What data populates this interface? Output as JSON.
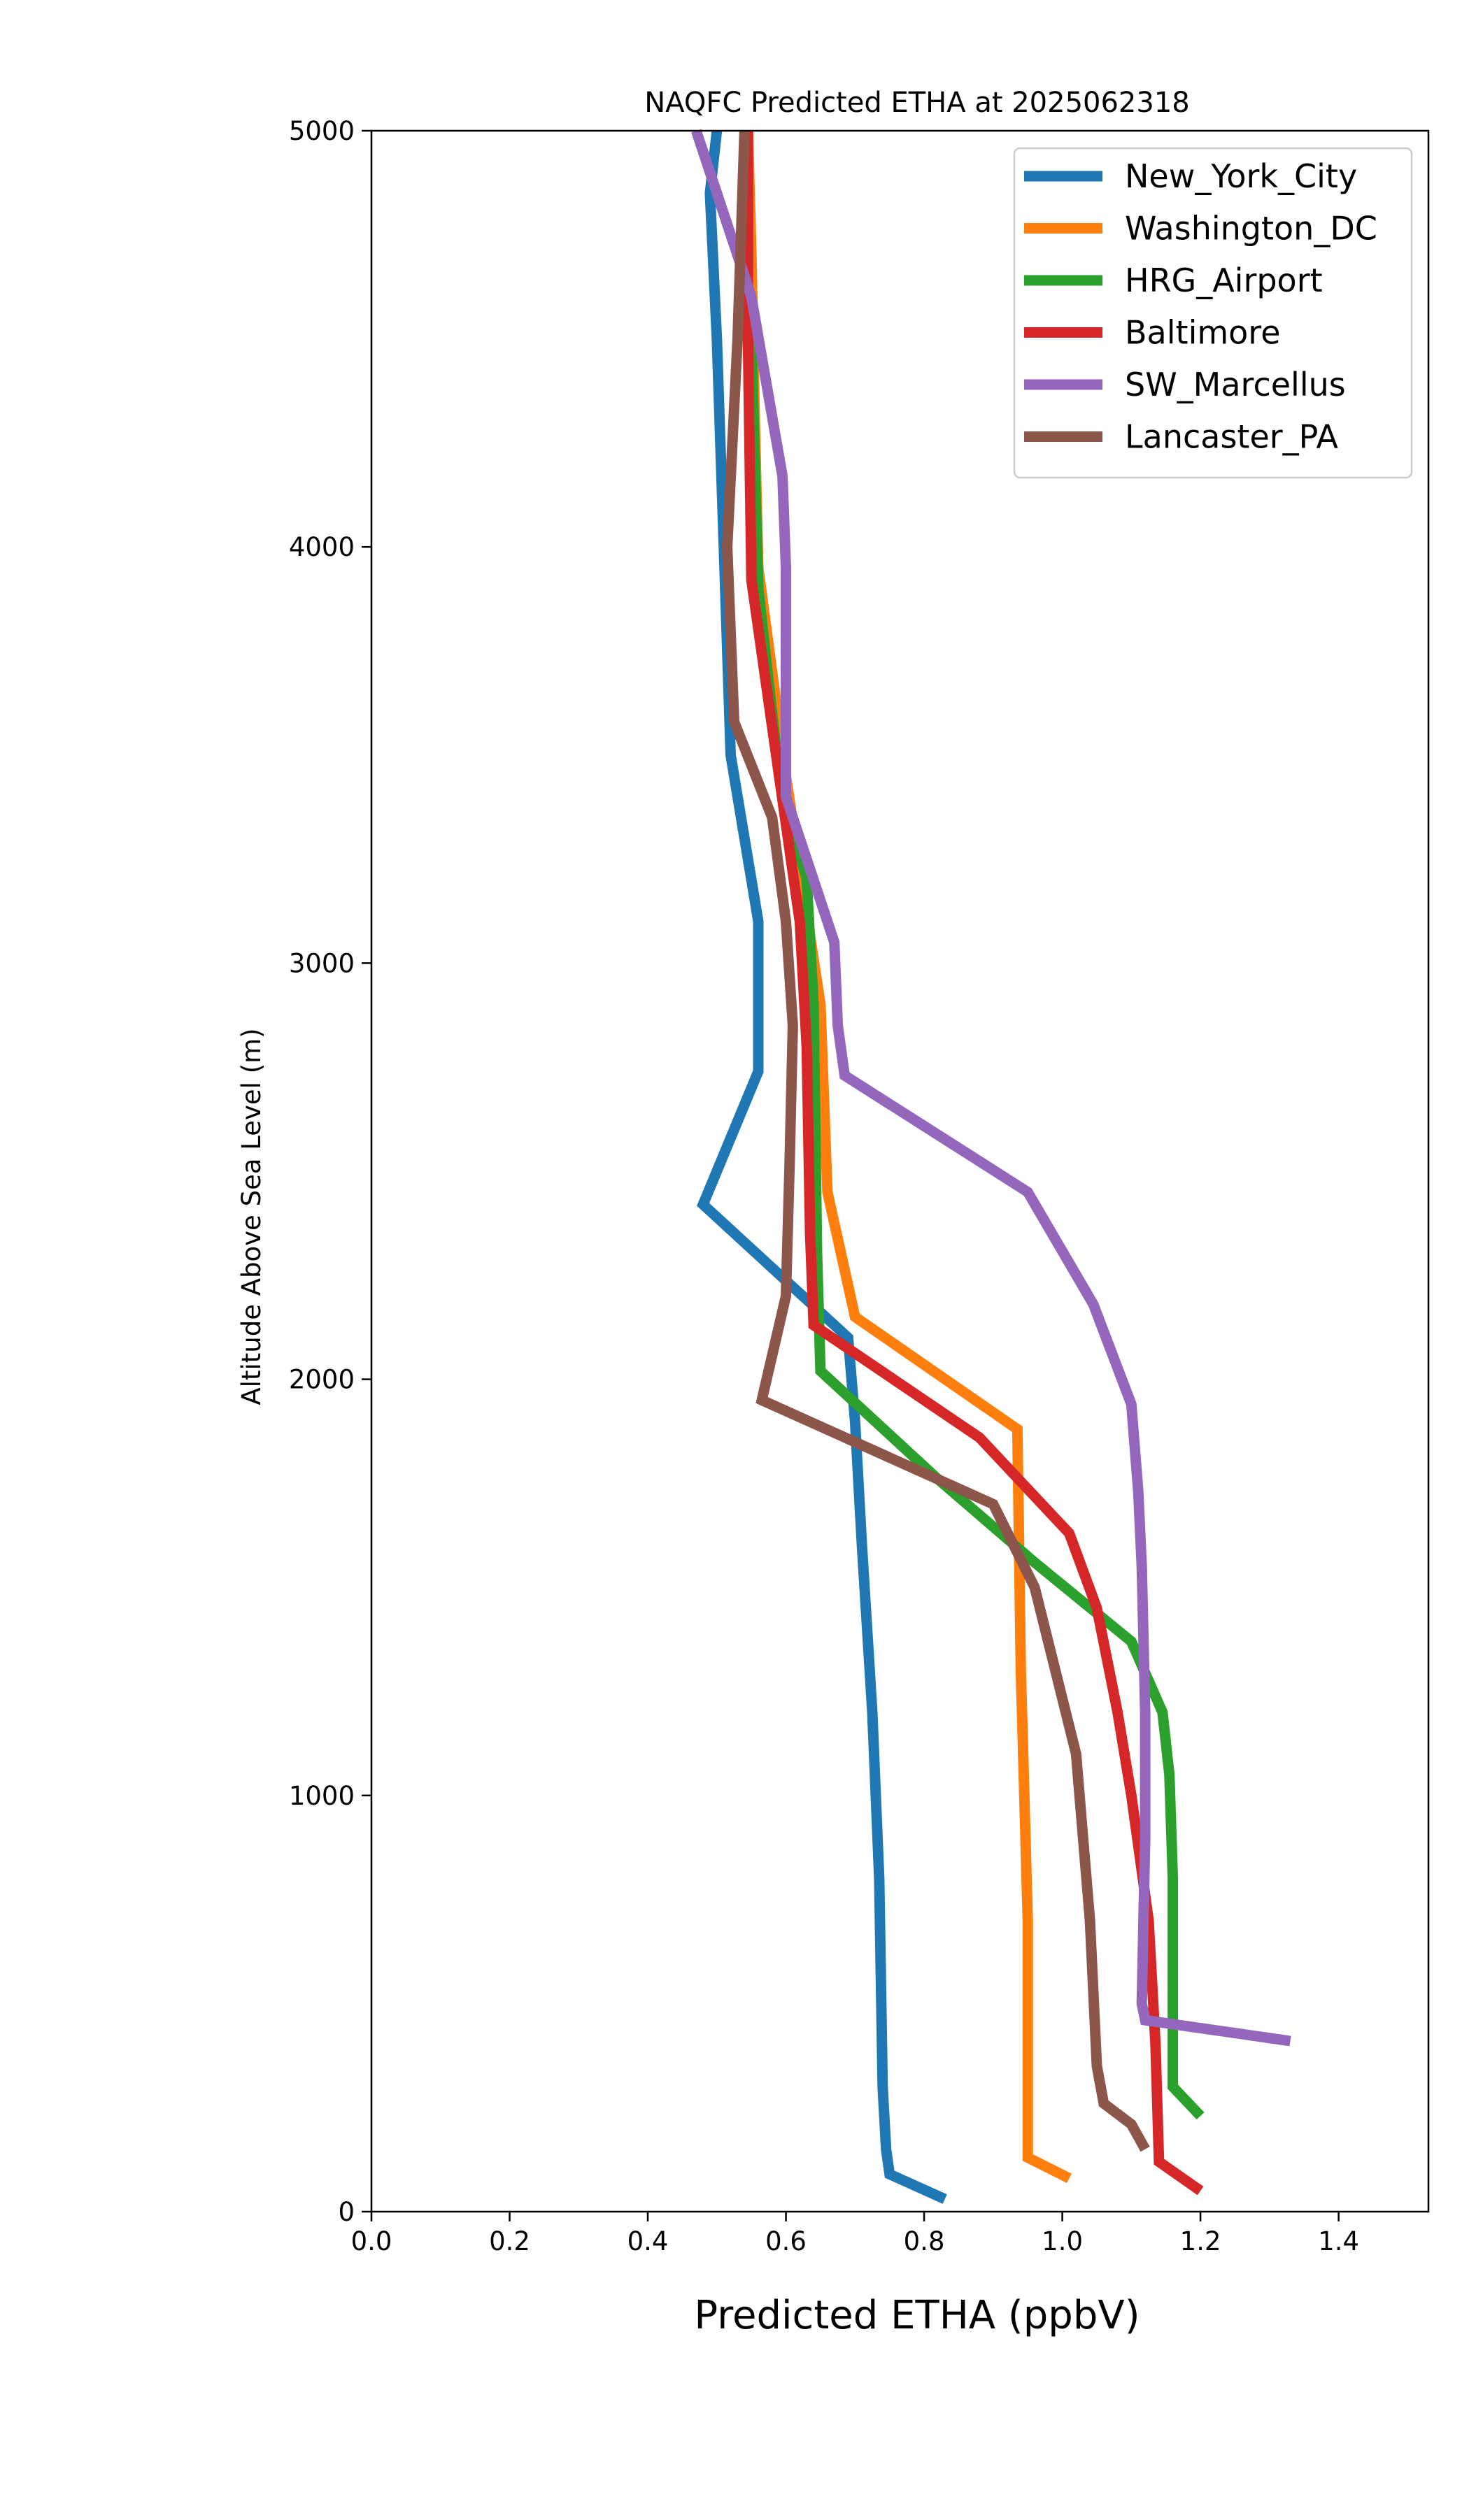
{
  "chart_data": {
    "type": "line",
    "title": "NAQFC Predicted ETHA at 2025062318",
    "xlabel": "Predicted ETHA (ppbV)",
    "ylabel": "Altitude Above Sea Level (m)",
    "xlim": [
      0.0,
      1.53
    ],
    "ylim": [
      0,
      5000
    ],
    "xticks": [
      "0.0",
      "0.2",
      "0.4",
      "0.6",
      "0.8",
      "1.0",
      "1.2",
      "1.4"
    ],
    "yticks": [
      "0",
      "1000",
      "2000",
      "3000",
      "4000",
      "5000"
    ],
    "grid": false,
    "legend_position": "top-right",
    "series": [
      {
        "name": "New_York_City",
        "color": "#1f77b4",
        "x": [
          0.83,
          0.75,
          0.745,
          0.74,
          0.735,
          0.725,
          0.71,
          0.7,
          0.69,
          0.48,
          0.56,
          0.56,
          0.555,
          0.52,
          0.51,
          0.5,
          0.49,
          0.5
        ],
        "y": [
          30,
          90,
          150,
          300,
          800,
          1200,
          1600,
          1900,
          2100,
          2420,
          2740,
          3100,
          3150,
          3500,
          4000,
          4500,
          4850,
          5000
        ]
      },
      {
        "name": "Washington_DC",
        "color": "#ff7f0e",
        "x": [
          1.01,
          0.95,
          0.95,
          0.945,
          0.94,
          0.935,
          0.7,
          0.66,
          0.65,
          0.6,
          0.56,
          0.555,
          0.55,
          0.545
        ],
        "y": [
          80,
          130,
          700,
          1000,
          1300,
          1880,
          2150,
          2450,
          2900,
          3450,
          3950,
          4300,
          4700,
          5000
        ]
      },
      {
        "name": "HRG_Airport",
        "color": "#2ca02c",
        "x": [
          1.2,
          1.16,
          1.16,
          1.155,
          1.145,
          1.1,
          0.96,
          0.82,
          0.65,
          0.645,
          0.64,
          0.63,
          0.59,
          0.56,
          0.55
        ],
        "y": [
          230,
          300,
          800,
          1050,
          1200,
          1370,
          1560,
          1760,
          2020,
          2300,
          2900,
          3200,
          3450,
          3900,
          4500
        ]
      },
      {
        "name": "Baltimore",
        "color": "#d62728",
        "x": [
          1.2,
          1.14,
          1.135,
          1.125,
          1.1,
          1.08,
          1.05,
          1.01,
          0.88,
          0.64,
          0.635,
          0.63,
          0.62,
          0.59,
          0.55,
          0.545,
          0.545
        ],
        "y": [
          50,
          120,
          400,
          700,
          1000,
          1200,
          1450,
          1630,
          1860,
          2130,
          2350,
          2800,
          3100,
          3450,
          3920,
          4500,
          5000
        ]
      },
      {
        "name": "SW_Marcellus",
        "color": "#9467bd",
        "x": [
          1.33,
          1.12,
          1.115,
          1.12,
          1.12,
          1.115,
          1.11,
          1.1,
          1.045,
          0.95,
          0.685,
          0.675,
          0.67,
          0.6,
          0.6,
          0.595,
          0.55,
          0.47
        ],
        "y": [
          410,
          460,
          500,
          900,
          1200,
          1550,
          1730,
          1940,
          2180,
          2450,
          2730,
          2850,
          3050,
          3400,
          3950,
          4170,
          4600,
          5000
        ]
      },
      {
        "name": "Lancaster_PA",
        "color": "#8c564b",
        "x": [
          1.12,
          1.1,
          1.06,
          1.05,
          1.04,
          1.02,
          0.99,
          0.96,
          0.9,
          0.565,
          0.6,
          0.605,
          0.61,
          0.6,
          0.58,
          0.525,
          0.515,
          0.53,
          0.54
        ],
        "y": [
          150,
          210,
          260,
          350,
          700,
          1100,
          1300,
          1500,
          1700,
          1950,
          2200,
          2500,
          2850,
          3100,
          3350,
          3580,
          4000,
          4500,
          5000
        ]
      }
    ]
  }
}
